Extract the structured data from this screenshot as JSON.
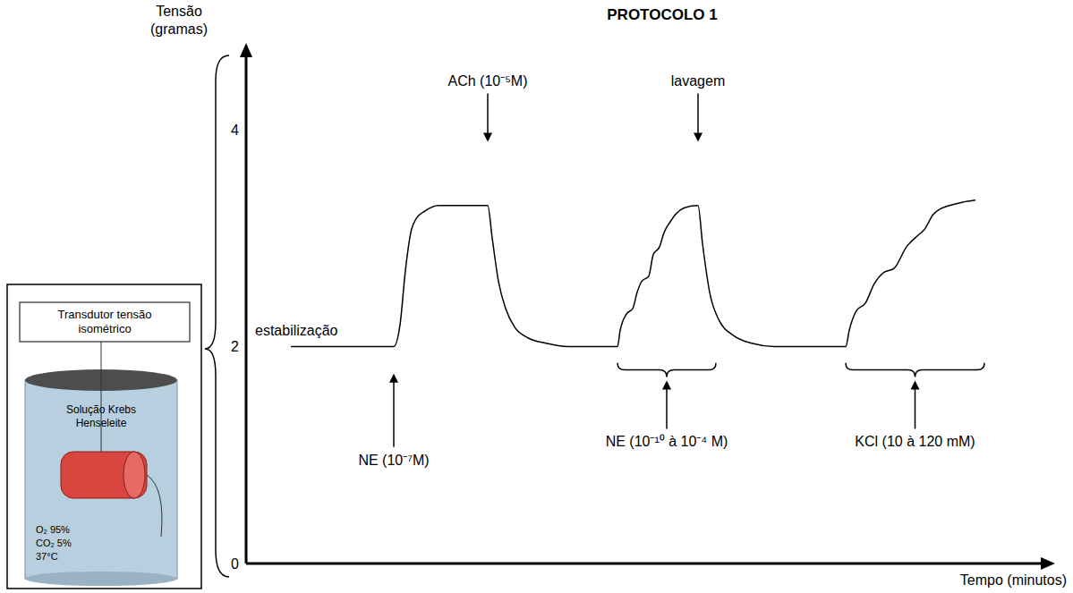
{
  "chart_data": {
    "type": "line",
    "title": "PROTOCOLO 1",
    "y_label": "Tensão (gramas)",
    "x_label": "Tempo (minutos)",
    "xlim": [
      0,
      890
    ],
    "ylim": [
      0,
      4.7
    ],
    "yticks": [
      0,
      2,
      4
    ],
    "tick_labels": "y",
    "grid": false,
    "color": "#000000",
    "x": [
      50,
      165,
      172,
      178,
      184,
      190,
      200,
      215,
      270,
      275,
      282,
      290,
      300,
      315,
      335,
      360,
      415,
      418,
      425,
      432,
      437,
      442,
      450,
      455,
      462,
      467,
      474,
      480,
      490,
      505,
      510,
      518,
      528,
      545,
      565,
      590,
      670,
      674,
      682,
      692,
      702,
      712,
      724,
      738,
      750,
      758,
      768,
      776,
      786,
      800,
      815
    ],
    "values": [
      2,
      2,
      2.2,
      2.7,
      3.05,
      3.18,
      3.25,
      3.3,
      3.3,
      3.0,
      2.6,
      2.35,
      2.18,
      2.08,
      2.03,
      2.0,
      2.0,
      2.15,
      2.3,
      2.35,
      2.5,
      2.6,
      2.65,
      2.85,
      2.92,
      3.05,
      3.15,
      3.22,
      3.28,
      3.3,
      2.95,
      2.5,
      2.25,
      2.1,
      2.03,
      2.0,
      2.0,
      2.15,
      2.33,
      2.4,
      2.58,
      2.68,
      2.72,
      2.92,
      3.02,
      3.08,
      3.22,
      3.27,
      3.3,
      3.33,
      3.35
    ],
    "baseline_label": {
      "text": "estabilização",
      "x": 10,
      "y": 2.1
    },
    "annotations": [
      {
        "text": "NE (10⁻⁷M)",
        "x": 165,
        "y": 0.91
      },
      {
        "text": "ACh (10⁻⁵M)",
        "x": 270,
        "y": 4.4
      },
      {
        "text": "lavagem",
        "x": 505,
        "y": 4.4
      }
    ],
    "range_annotations": [
      {
        "text": "NE (10⁻¹⁰ à 10⁻⁴ M)",
        "x": [
          415,
          525
        ],
        "y": [
          1.72,
          1.85
        ]
      },
      {
        "text": "KCl (10 à 120 mM)",
        "x": [
          670,
          825
        ],
        "y": [
          1.72,
          1.85
        ]
      }
    ],
    "apparatus": {
      "label": "Transdutor tensão isométrico",
      "solution": "Solução Krebs Henseleite",
      "gases": [
        "O₂ 95%",
        "CO₂ 5%"
      ],
      "temperature": "37°C"
    }
  }
}
